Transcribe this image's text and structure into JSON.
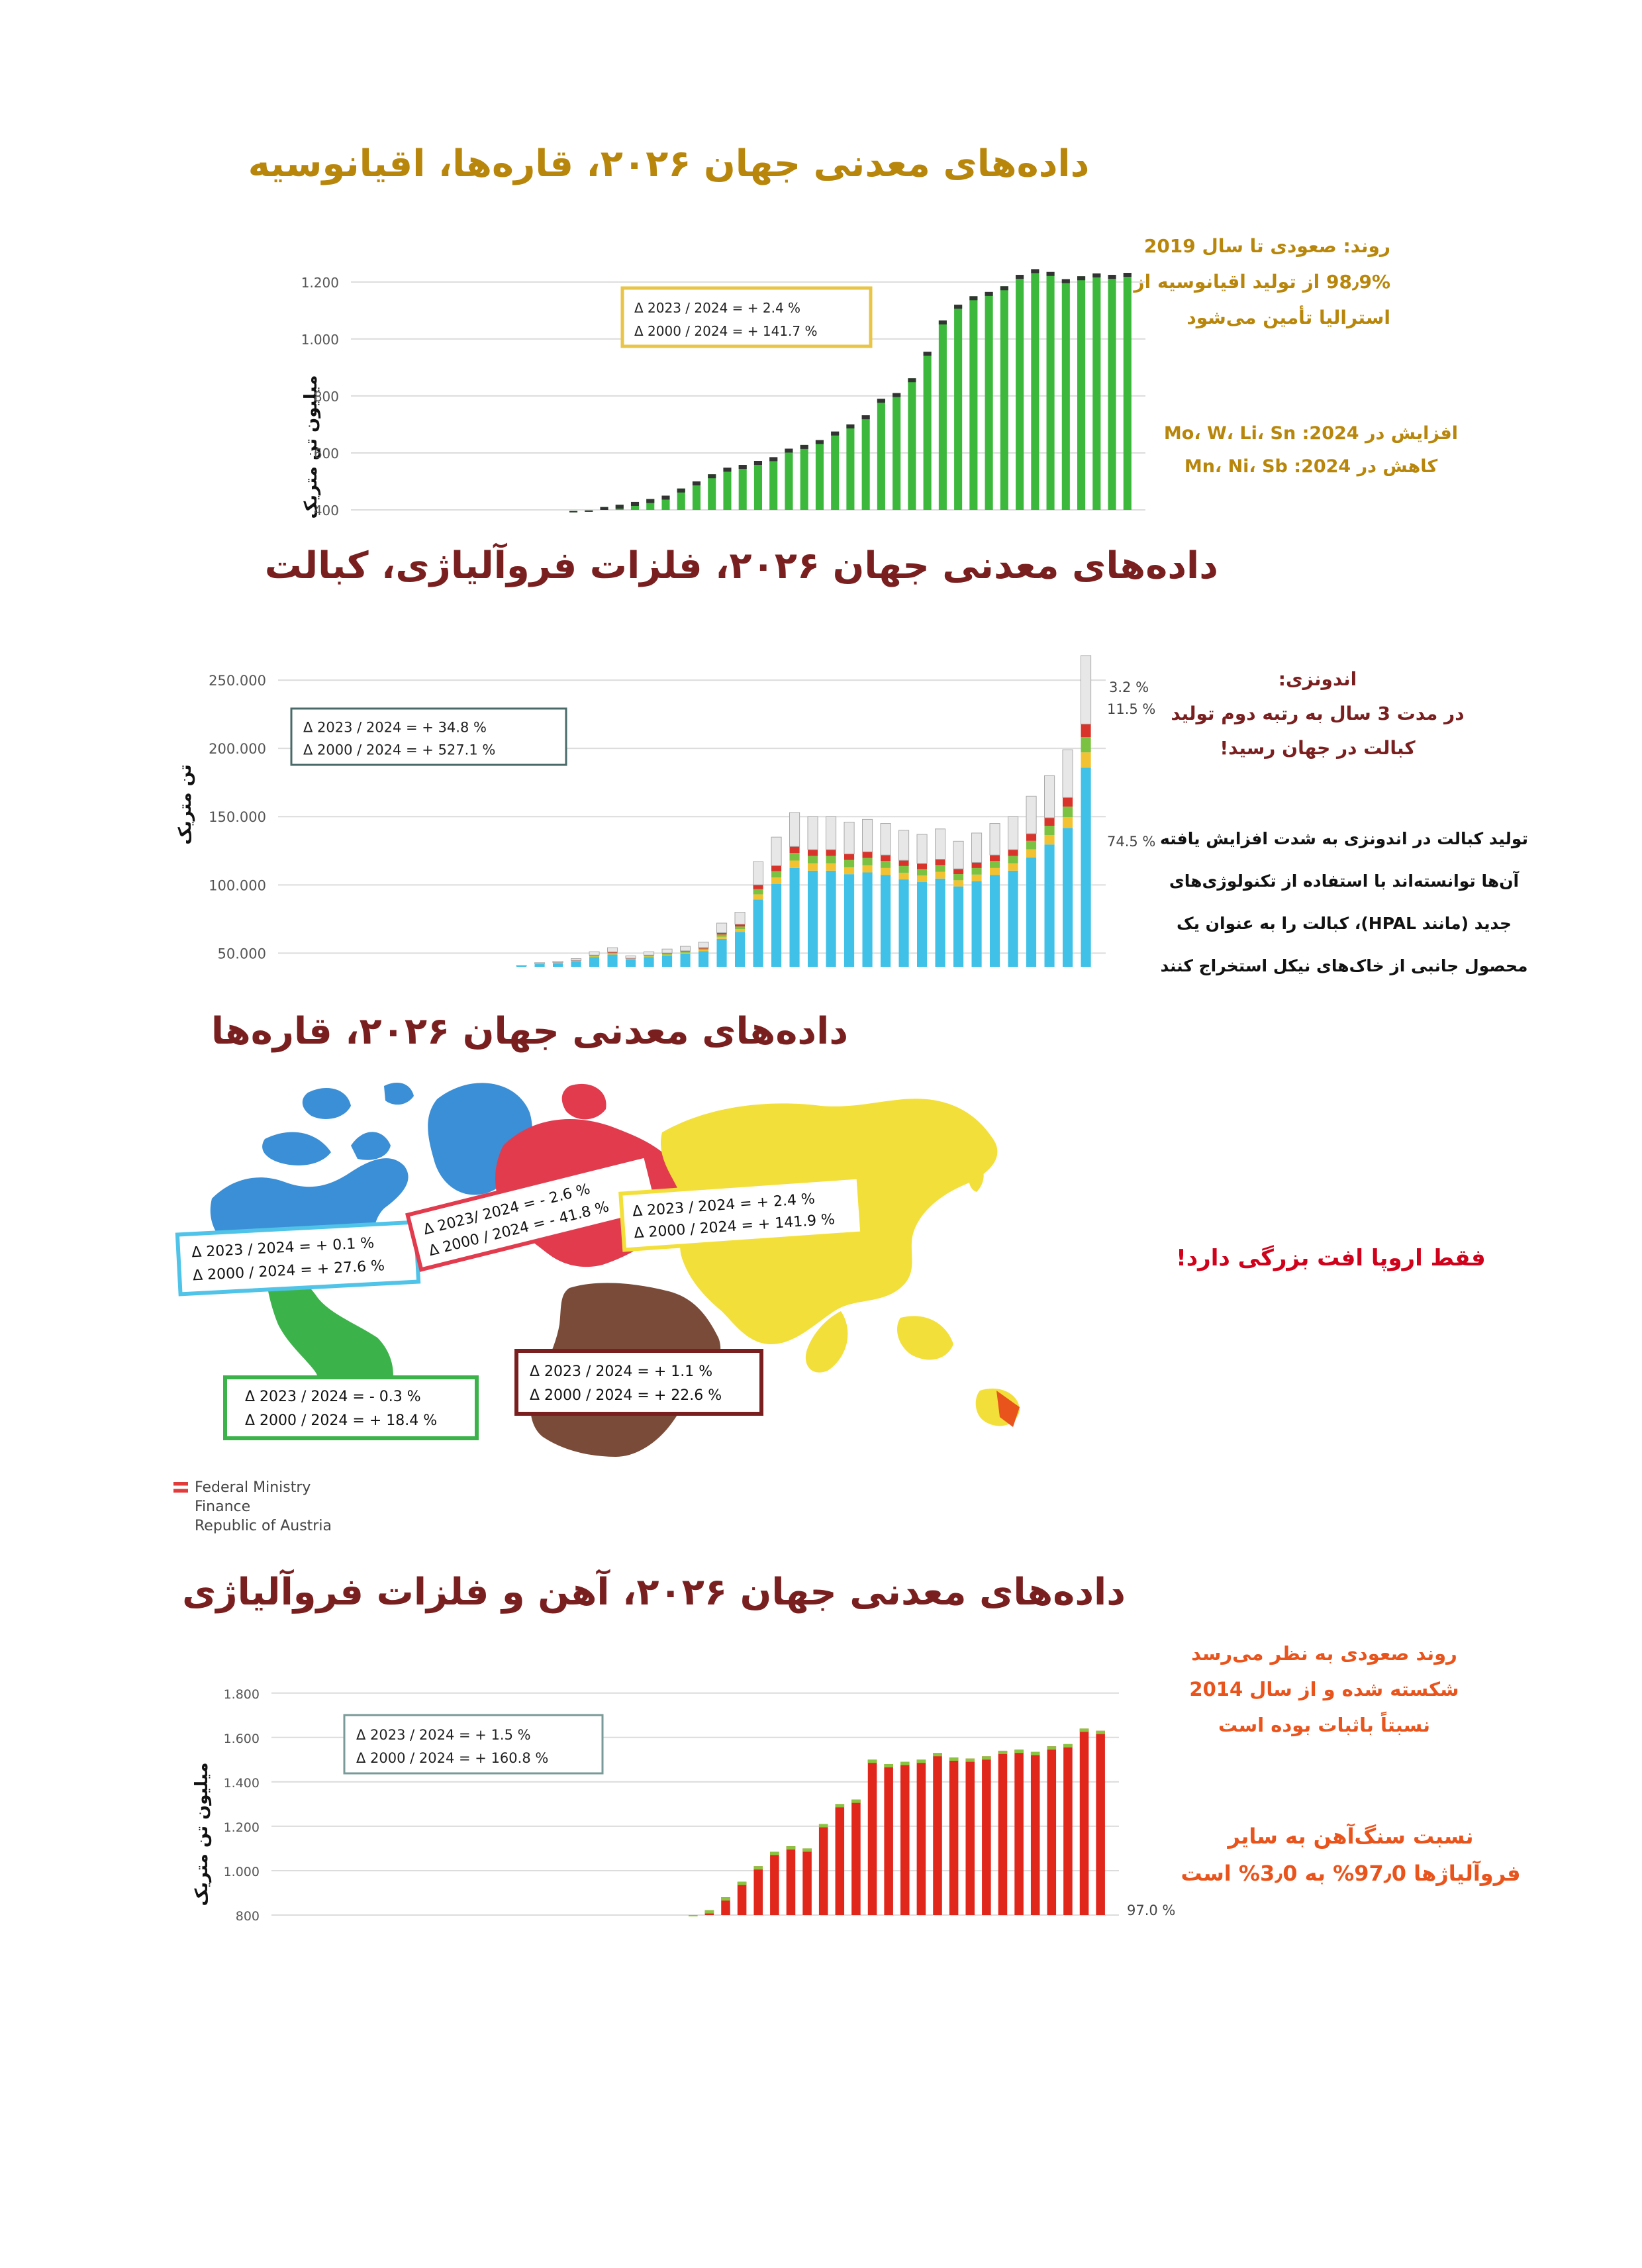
{
  "charts_meta": [
    {
      "title": "داده‌های معدنی جهان ۲۰۲۶، قاره‌ها، اقیانوسیه",
      "ylabel": "میلیون تن متریک",
      "box_line1": "Δ 2023 / 2024 =  +    2.4 %",
      "box_line2": "Δ 2000 / 2024 =  + 141.7 %",
      "notes": [
        "روند: صعودی تا سال 2019",
        "98٫9% از تولید اقیانوسیه از",
        "استرالیا تأمین می‌شود"
      ],
      "notes2": [
        "افزایش در 2024: Mo، W، Li، Sn",
        "کاهش در 2024: Mn، Ni، Sb"
      ]
    },
    {
      "title": "داده‌های معدنی جهان ۲۰۲۶، فلزات فروآلیاژی، کبالت",
      "ylabel": "تن متریک",
      "box_line1": "Δ 2023 / 2024 =  +   34.8 %",
      "box_line2": "Δ 2000 / 2024 =  + 527.1 %",
      "pct_labels": [
        "3.2 %",
        "11.5 %",
        "74.5 %"
      ],
      "notes": [
        "اندونزی:",
        "در مدت 3 سال به رتبه دوم تولید",
        "کبالت در جهان رسید!"
      ],
      "notes2": [
        "تولید کبالت در اندونزی به شدت افزایش یافته",
        "آن‌ها توانسته‌اند با استفاده از تکنولوژی‌های",
        "جدید (مانند HPAL)، کبالت را به عنوان یک",
        "محصول جانبی از خاک‌های نیکل استخراج کنند"
      ]
    },
    {
      "title": "داده‌های معدنی جهان ۲۰۲۶، قاره‌ها",
      "note": "فقط اروپا افت بزرگی دارد!",
      "source": [
        "Federal Ministry",
        "Finance",
        "Republic of Austria"
      ],
      "boxes": {
        "north_america": {
          "l1": "Δ 2023 / 2024 =  +   0.1 %",
          "l2": "Δ 2000 / 2024 =  + 27.6 %"
        },
        "europe": {
          "l1": "Δ 2023/ 2024 =  -   2.6 %",
          "l2": "Δ 2000 / 2024 =  -  41.8 %"
        },
        "asia": {
          "l1": "Δ 2023 / 2024 =  +    2.4 %",
          "l2": "Δ 2000 / 2024 =  + 141.9 %"
        },
        "africa": {
          "l1": "Δ 2023 / 2024 =  +   1.1 %",
          "l2": "Δ 2000 / 2024 =  + 22.6 %"
        },
        "south_america": {
          "l1": "Δ 2023 / 2024 =  -   0.3 %",
          "l2": "Δ 2000 / 2024 =  + 18.4 %"
        }
      }
    },
    {
      "title": "داده‌های معدنی جهان ۲۰۲۶، آهن و فلزات فروآلیاژی",
      "ylabel": "میلیون تن متریک",
      "box_line1": "Δ 2023 / 2024 =  +     1.5 %",
      "box_line2": "Δ 2000 / 2024 =  + 160.8 %",
      "pct_label": "97.0 %",
      "notes": [
        "روند صعودی به نظر می‌رسد",
        "شکسته شده و از سال 2014",
        "نسبتاً باثبات بوده است"
      ],
      "notes2": [
        "نسبت سنگ‌آهن به سایر",
        "فروآلیاژها 97٫0% به 3٫0% است"
      ]
    }
  ],
  "chart_data": [
    {
      "type": "bar",
      "ylabel": "میلیون تن متریک",
      "yticks": [
        "1.200",
        "1.000",
        "800",
        "600",
        "400"
      ],
      "ylim": [
        400,
        1260
      ],
      "series": [
        {
          "values": [
            396,
            398,
            410,
            418,
            428,
            438,
            450,
            475,
            500,
            525,
            548,
            558,
            572,
            585,
            615,
            628,
            645,
            675,
            700,
            732,
            790,
            810,
            862,
            955,
            1065,
            1120,
            1150,
            1165,
            1185,
            1225,
            1245,
            1235,
            1210,
            1220,
            1230,
            1225,
            1232
          ]
        }
      ]
    },
    {
      "type": "bar",
      "ylabel": "تن متریک",
      "yticks": [
        "250.000",
        "200.000",
        "150.000",
        "100.000",
        "50.000"
      ],
      "ylim": [
        40000,
        268000
      ],
      "series": [
        {
          "values": [
            41000,
            43000,
            44000,
            46000,
            51000,
            54000,
            48000,
            51000,
            53000,
            55000,
            58000,
            72000,
            80000,
            117000,
            135000,
            153000,
            150000,
            150000,
            146000,
            148000,
            145000,
            140000,
            137000,
            141000,
            132000,
            138000,
            145000,
            150000,
            165000,
            180000,
            199000,
            268000
          ]
        }
      ]
    },
    {
      "type": "bar",
      "ylabel": "میلیون تن متریک",
      "yticks": [
        "1.800",
        "1.600",
        "1.400",
        "1.200",
        "1.000",
        "800"
      ],
      "ylim": [
        800,
        1850
      ],
      "series": [
        {
          "values": [
            800,
            822,
            880,
            950,
            1020,
            1085,
            1110,
            1100,
            1210,
            1300,
            1320,
            1500,
            1480,
            1490,
            1500,
            1530,
            1510,
            1505,
            1515,
            1540,
            1545,
            1535,
            1560,
            1570,
            1640,
            1630
          ]
        }
      ]
    }
  ]
}
